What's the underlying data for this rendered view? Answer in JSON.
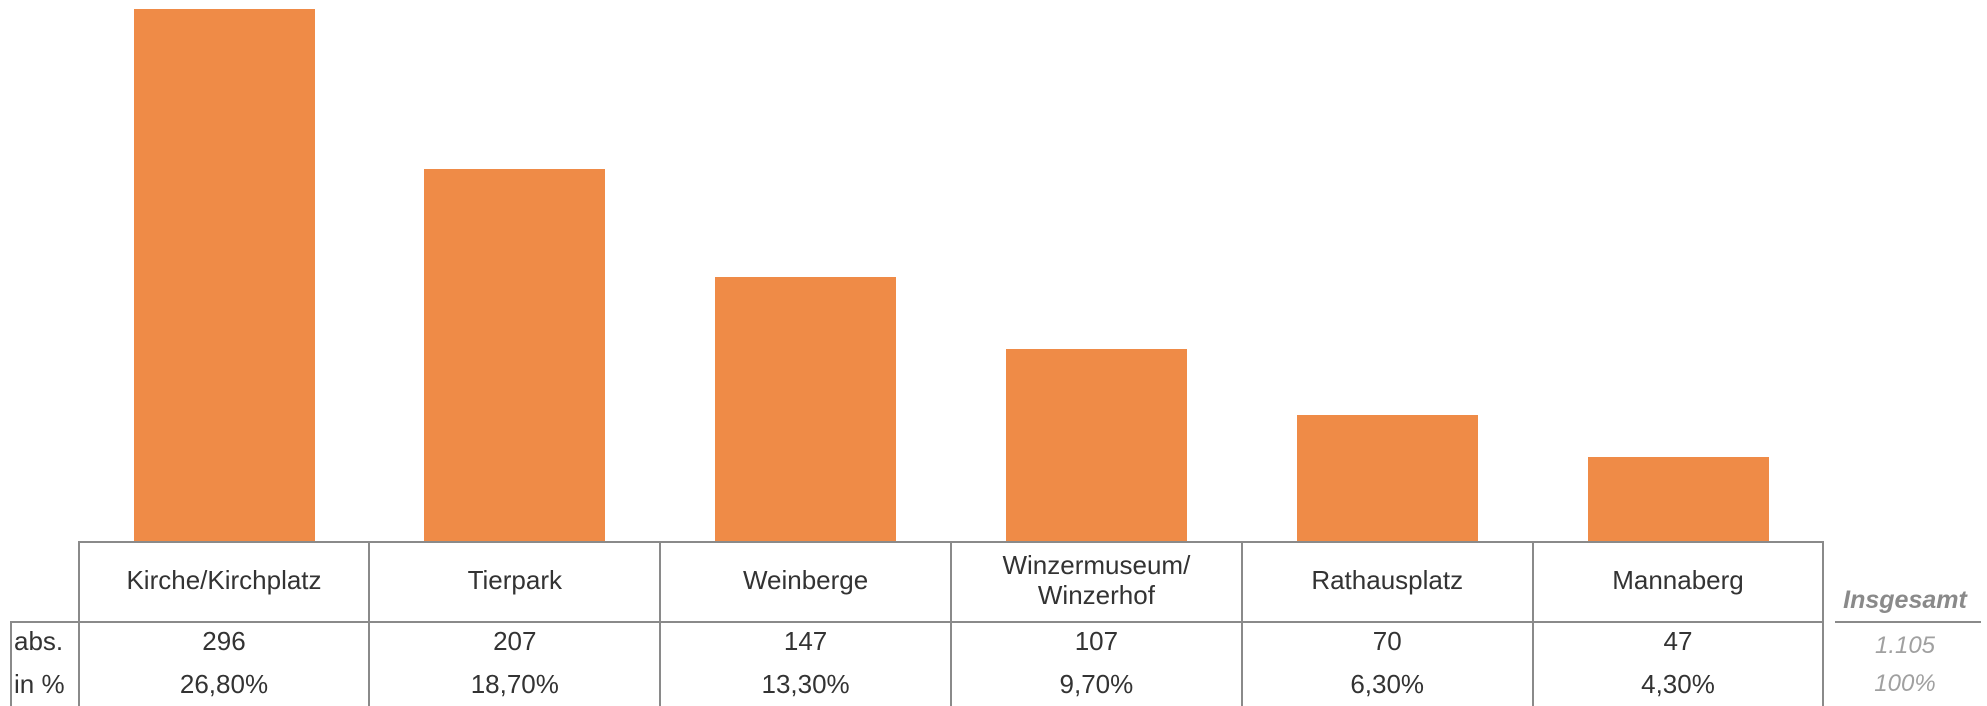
{
  "chart_data": {
    "type": "bar",
    "categories": [
      "Kirche/Kirchplatz",
      "Tierpark",
      "Weinberge",
      "Winzermuseum/\nWinzerhof",
      "Rathausplatz",
      "Mannaberg"
    ],
    "values": [
      296,
      207,
      147,
      107,
      70,
      47
    ],
    "color": "#ef8b47",
    "ylim": [
      0,
      296
    ],
    "row_labels": [
      "abs.",
      "in %"
    ],
    "shares": [
      26.8,
      18.7,
      13.3,
      9.7,
      6.3,
      4.3
    ],
    "share_labels": [
      "26,80%",
      "18,70%",
      "13,30%",
      "9,70%",
      "6,30%",
      "4,30%"
    ],
    "total": {
      "label": "Insgesamt",
      "value": 1105,
      "value_label": "1.105",
      "share": 100,
      "share_label": "100%"
    }
  }
}
